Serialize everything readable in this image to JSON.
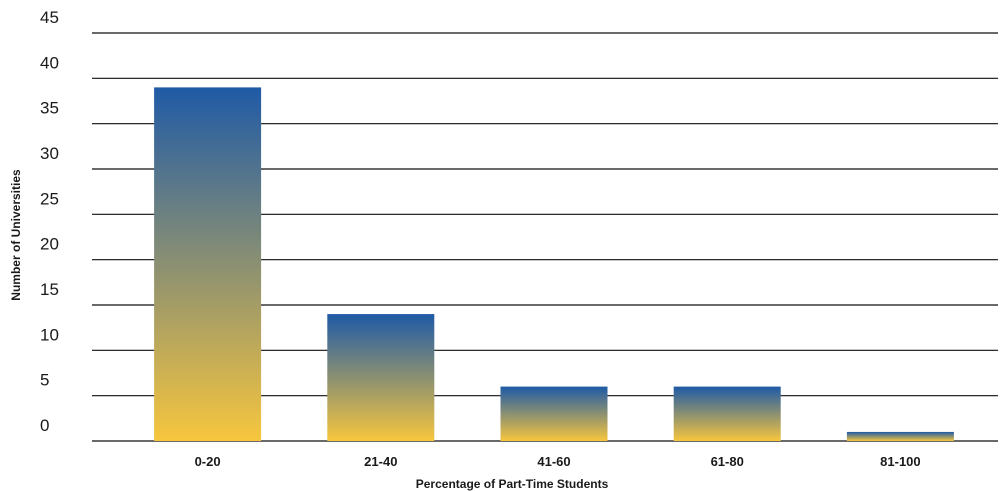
{
  "chart_data": {
    "type": "bar",
    "xlabel": "Percentage of Part-Time Students",
    "ylabel": "Number of Universities",
    "categories": [
      "0-20",
      "21-40",
      "41-60",
      "61-80",
      "81-100"
    ],
    "values": [
      39,
      14,
      6,
      6,
      1
    ],
    "ylim": [
      0,
      45
    ],
    "yticks": [
      "0",
      "5",
      "10",
      "15",
      "20",
      "25",
      "30",
      "35",
      "40",
      "45"
    ],
    "grid": true,
    "legend": "none",
    "colors": {
      "bar_top": "#1f5aa6",
      "bar_bottom": "#f7c63e",
      "grid": "#111111"
    }
  }
}
